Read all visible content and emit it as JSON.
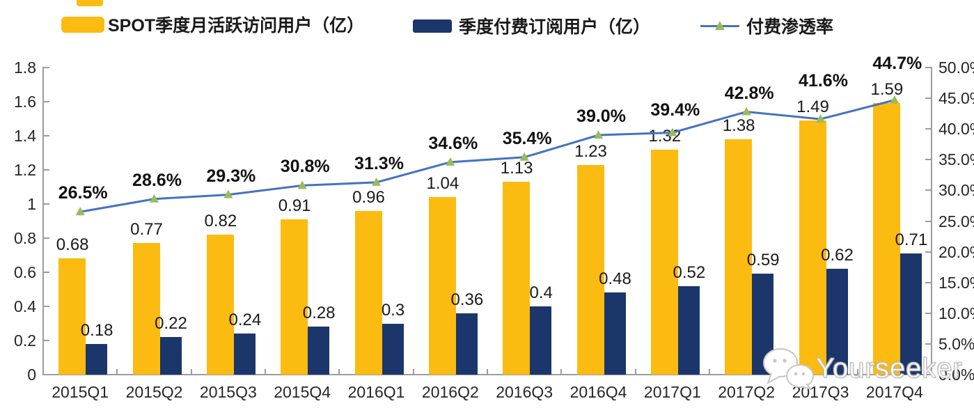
{
  "legend": {
    "items": [
      {
        "label": "SPOT季度月活跃访问用户（亿）",
        "swatch": "yellow-bar-swatch"
      },
      {
        "label": "季度付费订阅用户（亿）",
        "swatch": "navy-bar-swatch"
      },
      {
        "label": "付费渗透率",
        "swatch": "line-marker-swatch"
      }
    ]
  },
  "colors": {
    "mau_bar": "#FBBB10",
    "subs_bar": "#1A366B",
    "penetration_line": "#4472C4",
    "penetration_marker": "#9BBB59",
    "axis": "#9c9c9c",
    "label_text": "#1a1a1a"
  },
  "watermark": {
    "text": "Yourseeker",
    "icon": "wechat-icon"
  },
  "chart_data": {
    "type": "bar",
    "subtype": "combo-bar-line",
    "title": "",
    "xlabel": "",
    "ylabel": "",
    "grid": false,
    "legend_position": "top",
    "categories": [
      "2015Q1",
      "2015Q2",
      "2015Q3",
      "2015Q4",
      "2016Q1",
      "2016Q2",
      "2016Q3",
      "2016Q4",
      "2017Q1",
      "2017Q2",
      "2017Q3",
      "2017Q4"
    ],
    "series": [
      {
        "name": "SPOT季度月活跃访问用户（亿）",
        "type": "bar",
        "axis": "left",
        "values": [
          0.68,
          0.77,
          0.82,
          0.91,
          0.96,
          1.04,
          1.13,
          1.23,
          1.32,
          1.38,
          1.49,
          1.59
        ],
        "labels": [
          "0.68",
          "0.77",
          "0.82",
          "0.91",
          "0.96",
          "1.04",
          "1.13",
          "1.23",
          "1.32",
          "1.38",
          "1.49",
          "1.59"
        ]
      },
      {
        "name": "季度付费订阅用户（亿）",
        "type": "bar",
        "axis": "left",
        "values": [
          0.18,
          0.22,
          0.24,
          0.28,
          0.3,
          0.36,
          0.4,
          0.48,
          0.52,
          0.59,
          0.62,
          0.71
        ],
        "labels": [
          "0.18",
          "0.22",
          "0.24",
          "0.28",
          "0.3",
          "0.36",
          "0.4",
          "0.48",
          "0.52",
          "0.59",
          "0.62",
          "0.71"
        ]
      },
      {
        "name": "付费渗透率",
        "type": "line",
        "axis": "right",
        "values": [
          26.5,
          28.6,
          29.3,
          30.8,
          31.3,
          34.6,
          35.4,
          39.0,
          39.4,
          42.8,
          41.6,
          44.7
        ],
        "labels": [
          "26.5%",
          "28.6%",
          "29.3%",
          "30.8%",
          "31.3%",
          "34.6%",
          "35.4%",
          "39.0%",
          "39.4%",
          "42.8%",
          "41.6%",
          "44.7%"
        ]
      }
    ],
    "left_axis": {
      "min": 0,
      "max": 1.8,
      "step": 0.2,
      "ticks": [
        "0",
        "0.2",
        "0.4",
        "0.6",
        "0.8",
        "1",
        "1.2",
        "1.4",
        "1.6",
        "1.8"
      ]
    },
    "right_axis": {
      "min": 0,
      "max": 50,
      "step": 5,
      "ticks": [
        "0.0%",
        "5.0%",
        "10.0%",
        "15.0%",
        "20.0%",
        "25.0%",
        "30.0%",
        "35.0%",
        "40.0%",
        "45.0%",
        "50.0%"
      ]
    }
  }
}
